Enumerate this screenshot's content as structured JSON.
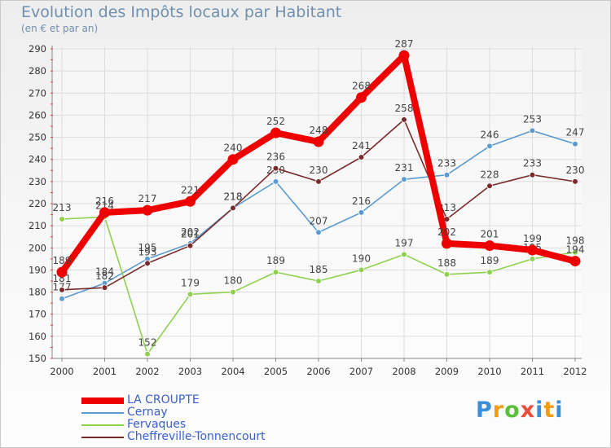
{
  "header": {
    "title": "Evolution des Impôts locaux par Habitant",
    "subtitle": "(en € et par an)"
  },
  "logo": {
    "letters": [
      "P",
      "r",
      "o",
      "x",
      "i",
      "t",
      "i"
    ]
  },
  "chart_data": {
    "type": "line",
    "title": "Evolution des Impôts locaux par Habitant",
    "subtitle": "(en € et par an)",
    "xlabel": "",
    "ylabel": "",
    "categories": [
      "2000",
      "2001",
      "2002",
      "2003",
      "2004",
      "2005",
      "2006",
      "2007",
      "2008",
      "2009",
      "2010",
      "2011",
      "2012"
    ],
    "ylim": [
      150,
      290
    ],
    "yticks": [
      150,
      160,
      170,
      180,
      190,
      200,
      210,
      220,
      230,
      240,
      250,
      260,
      270,
      280,
      290
    ],
    "grid": true,
    "legend_position": "bottom-left",
    "series": [
      {
        "name": "Cernay",
        "color": "#5c9bd1",
        "values": [
          177,
          184,
          195,
          202,
          218,
          230,
          207,
          216,
          231,
          233,
          246,
          253,
          247
        ],
        "labels": [
          "177",
          "184",
          "195",
          "202",
          "218",
          "230",
          "207",
          "216",
          "231",
          "233",
          "246",
          "253",
          "247"
        ]
      },
      {
        "name": "Fervaques",
        "color": "#8fd14f",
        "values": [
          213,
          214,
          152,
          179,
          180,
          189,
          185,
          190,
          197,
          188,
          189,
          195,
          198
        ],
        "labels": [
          "213",
          "214",
          "152",
          "179",
          "180",
          "189",
          "185",
          "190",
          "197",
          "188",
          "189",
          "195",
          "198"
        ]
      },
      {
        "name": "Cheffreville-Tonnencourt",
        "color": "#7a2a2a",
        "values": [
          181,
          182,
          193,
          201,
          218,
          236,
          230,
          241,
          258,
          213,
          228,
          233,
          230
        ],
        "labels": [
          "181",
          "182",
          "193",
          "201",
          "218",
          "236",
          "230",
          "241",
          "258",
          "213",
          "228",
          "233",
          "230"
        ]
      },
      {
        "name": "LA CROUPTE",
        "color": "#ee0000",
        "values": [
          189,
          216,
          217,
          221,
          240,
          252,
          248,
          268,
          287,
          202,
          201,
          199,
          194
        ],
        "labels": [
          "189",
          "216",
          "217",
          "221",
          "240",
          "252",
          "248",
          "268",
          "287",
          "202",
          "201",
          "199",
          "194"
        ]
      }
    ],
    "legend_order": [
      "LA CROUPTE",
      "Cernay",
      "Fervaques",
      "Cheffreville-Tonnencourt"
    ]
  }
}
